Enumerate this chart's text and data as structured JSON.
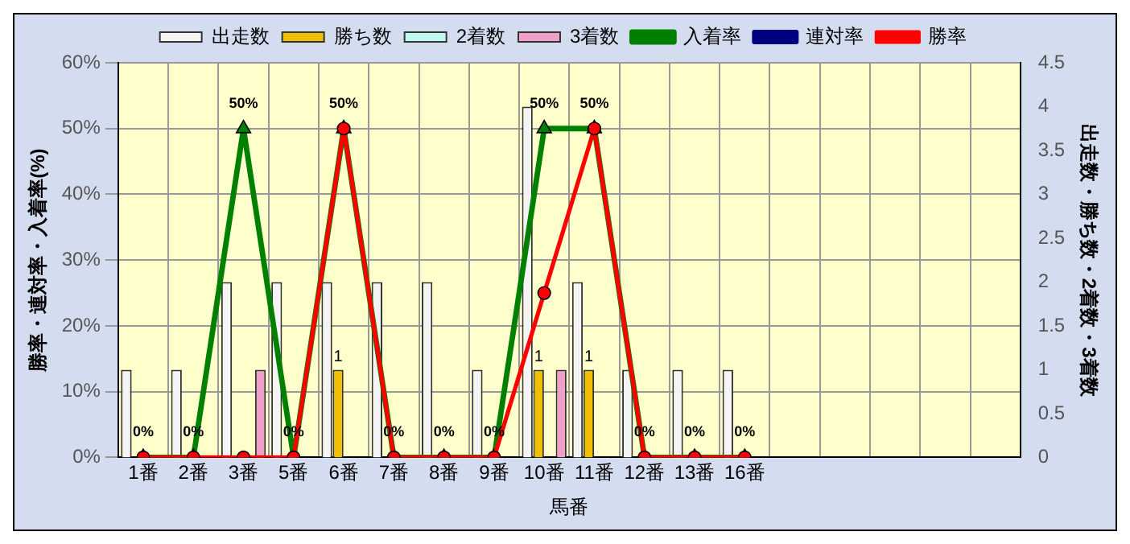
{
  "chart_data": {
    "type": "bar",
    "xlabel": "馬番",
    "ylabel": "勝率・連対率・入着率(%)",
    "y2label": "出走数・勝ち数・2着数・3着数",
    "categories": [
      "1番",
      "2番",
      "3番",
      "5番",
      "6番",
      "7番",
      "8番",
      "9番",
      "10番",
      "11番",
      "12番",
      "13番",
      "16番",
      null,
      null,
      null,
      null,
      null
    ],
    "series": [
      {
        "name": "出走数",
        "axis": "y2",
        "color": "#f4f4f4",
        "values": [
          1,
          1,
          2,
          2,
          2,
          2,
          2,
          1,
          4,
          2,
          1,
          1,
          1,
          null,
          null,
          null,
          null,
          null
        ]
      },
      {
        "name": "勝ち数",
        "axis": "y2",
        "color": "#f0c000",
        "values": [
          0,
          0,
          0,
          0,
          1,
          0,
          0,
          0,
          1,
          1,
          0,
          0,
          0,
          null,
          null,
          null,
          null,
          null
        ],
        "value_labels": [
          null,
          null,
          null,
          null,
          "1",
          null,
          null,
          null,
          "1",
          "1",
          null,
          null,
          null,
          null,
          null,
          null,
          null,
          null
        ]
      },
      {
        "name": "2着数",
        "axis": "y2",
        "color": "#c0f8f0",
        "values": [
          0,
          0,
          0,
          0,
          0,
          0,
          0,
          0,
          0,
          0,
          0,
          0,
          0,
          null,
          null,
          null,
          null,
          null
        ]
      },
      {
        "name": "3着数",
        "axis": "y2",
        "color": "#f0a0c8",
        "values": [
          0,
          0,
          1,
          0,
          0,
          0,
          0,
          0,
          1,
          0,
          0,
          0,
          0,
          null,
          null,
          null,
          null,
          null
        ]
      },
      {
        "name": "入着率",
        "type": "line",
        "marker": "triangle",
        "color": "#008000",
        "values": [
          0,
          0,
          50,
          0,
          50,
          0,
          0,
          0,
          50,
          50,
          0,
          0,
          0,
          null,
          null,
          null,
          null,
          null
        ],
        "value_labels": [
          "0%",
          "0%",
          "50%",
          "0%",
          "50%",
          "0%",
          "0%",
          "0%",
          "50%",
          "50%",
          "0%",
          "0%",
          "0%",
          null,
          null,
          null,
          null,
          null
        ]
      },
      {
        "name": "連対率",
        "type": "line",
        "marker": "diamond",
        "color": "#000080",
        "values": [
          null,
          null,
          null,
          null,
          null,
          null,
          null,
          null,
          null,
          null,
          null,
          null,
          null,
          null,
          null,
          null,
          null,
          null
        ]
      },
      {
        "name": "勝率",
        "type": "line",
        "marker": "circle",
        "color": "#ff0000",
        "values": [
          0,
          0,
          0,
          0,
          50,
          0,
          0,
          0,
          25,
          50,
          0,
          0,
          0,
          null,
          null,
          null,
          null,
          null
        ]
      }
    ],
    "ylim": [
      0,
      60
    ],
    "yticks": [
      {
        "value": 0,
        "label": "0%"
      },
      {
        "value": 10,
        "label": "10%"
      },
      {
        "value": 20,
        "label": "20%"
      },
      {
        "value": 30,
        "label": "30%"
      },
      {
        "value": 40,
        "label": "40%"
      },
      {
        "value": 50,
        "label": "50%"
      },
      {
        "value": 60,
        "label": "60%"
      }
    ],
    "y2lim": [
      0,
      4.5
    ],
    "y2ticks": [
      0,
      0.5,
      1,
      1.5,
      2,
      2.5,
      3,
      3.5,
      4,
      4.5
    ],
    "grid": true,
    "legend": "top"
  }
}
